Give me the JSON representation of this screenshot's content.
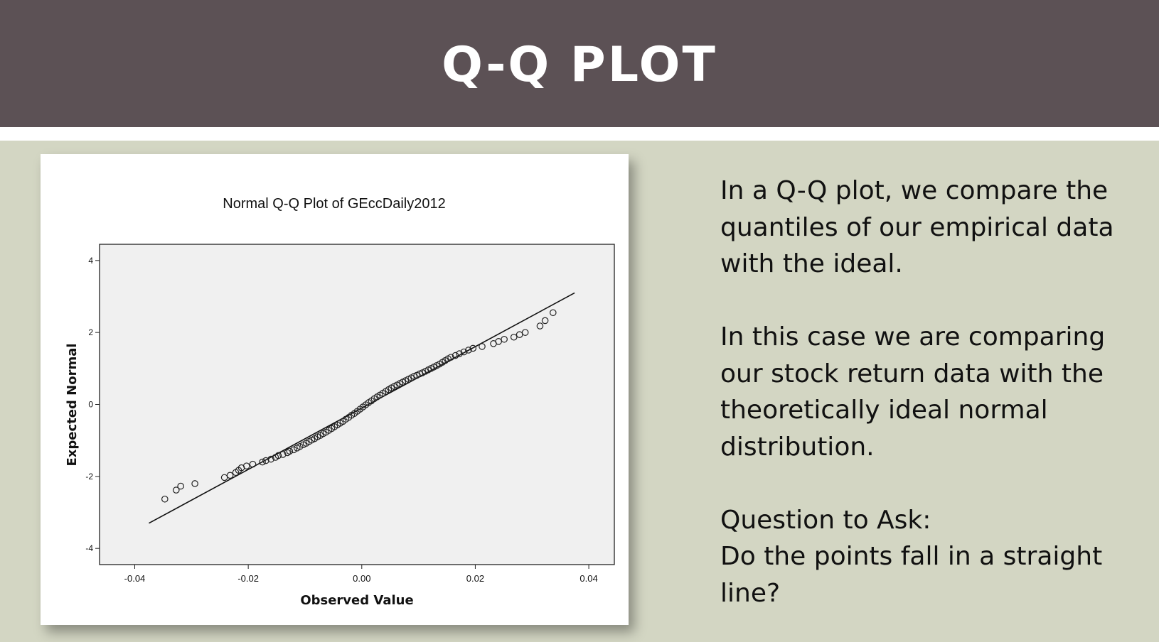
{
  "slide": {
    "title": "Q-Q PLOT",
    "paragraphs": [
      [
        "In a Q-Q plot, we compare the",
        "quantiles of our empirical data",
        "with the ideal."
      ],
      [
        "In this case we are comparing",
        "our stock return data with the",
        "theoretically ideal normal",
        "distribution."
      ],
      [
        "Question to Ask:",
        "Do the points fall in a straight",
        "line?"
      ]
    ]
  },
  "colors": {
    "header_bg": "#5c5155",
    "slide_bg": "#d3d6c3",
    "plot_bg": "#f0f0f0",
    "marker": "#222222"
  },
  "chart_data": {
    "type": "scatter",
    "title": "Normal Q-Q Plot of GEccDaily2012",
    "xlabel": "Observed Value",
    "ylabel": "Expected Normal",
    "xlim": [
      -0.0462,
      0.0445
    ],
    "ylim": [
      -4.45,
      4.45
    ],
    "xticks": [
      -0.04,
      -0.02,
      0.0,
      0.02,
      0.04
    ],
    "xtick_labels": [
      "-0.04",
      "-0.02",
      "0.00",
      "0.02",
      "0.04"
    ],
    "yticks": [
      4,
      2,
      0,
      -2,
      -4
    ],
    "ytick_labels": [
      "4",
      "2",
      "0",
      "-2",
      "-4"
    ],
    "grid": false,
    "marker": "open-circle",
    "reference_line": {
      "x": [
        -0.0375,
        0.0375
      ],
      "y": [
        -3.3,
        3.1
      ]
    },
    "points": [
      [
        -0.0347,
        -2.63
      ],
      [
        -0.0327,
        -2.38
      ],
      [
        -0.0319,
        -2.27
      ],
      [
        -0.0294,
        -2.2
      ],
      [
        -0.0242,
        -2.03
      ],
      [
        -0.0232,
        -1.97
      ],
      [
        -0.0222,
        -1.89
      ],
      [
        -0.0217,
        -1.83
      ],
      [
        -0.0212,
        -1.76
      ],
      [
        -0.0203,
        -1.71
      ],
      [
        -0.0192,
        -1.66
      ],
      [
        -0.0175,
        -1.6
      ],
      [
        -0.0169,
        -1.56
      ],
      [
        -0.016,
        -1.52
      ],
      [
        -0.0152,
        -1.47
      ],
      [
        -0.0147,
        -1.42
      ],
      [
        -0.0139,
        -1.39
      ],
      [
        -0.0131,
        -1.34
      ],
      [
        -0.0127,
        -1.3
      ],
      [
        -0.012,
        -1.26
      ],
      [
        -0.0114,
        -1.21
      ],
      [
        -0.0109,
        -1.17
      ],
      [
        -0.0103,
        -1.12
      ],
      [
        -0.0098,
        -1.08
      ],
      [
        -0.0093,
        -1.03
      ],
      [
        -0.0088,
        -0.99
      ],
      [
        -0.0083,
        -0.95
      ],
      [
        -0.0078,
        -0.9
      ],
      [
        -0.0073,
        -0.86
      ],
      [
        -0.0068,
        -0.81
      ],
      [
        -0.0063,
        -0.77
      ],
      [
        -0.0058,
        -0.72
      ],
      [
        -0.0053,
        -0.67
      ],
      [
        -0.0048,
        -0.62
      ],
      [
        -0.0043,
        -0.57
      ],
      [
        -0.0038,
        -0.52
      ],
      [
        -0.0033,
        -0.47
      ],
      [
        -0.0028,
        -0.41
      ],
      [
        -0.0023,
        -0.36
      ],
      [
        -0.0018,
        -0.3
      ],
      [
        -0.0013,
        -0.25
      ],
      [
        -0.0008,
        -0.19
      ],
      [
        -0.0003,
        -0.13
      ],
      [
        0.0002,
        -0.07
      ],
      [
        0.0007,
        -0.01
      ],
      [
        0.0012,
        0.05
      ],
      [
        0.0017,
        0.1
      ],
      [
        0.0022,
        0.16
      ],
      [
        0.0027,
        0.21
      ],
      [
        0.0032,
        0.26
      ],
      [
        0.0037,
        0.31
      ],
      [
        0.0042,
        0.36
      ],
      [
        0.0047,
        0.41
      ],
      [
        0.0052,
        0.46
      ],
      [
        0.0057,
        0.5
      ],
      [
        0.0062,
        0.54
      ],
      [
        0.0067,
        0.58
      ],
      [
        0.0072,
        0.62
      ],
      [
        0.0077,
        0.66
      ],
      [
        0.0082,
        0.7
      ],
      [
        0.0087,
        0.74
      ],
      [
        0.0092,
        0.78
      ],
      [
        0.0097,
        0.81
      ],
      [
        0.0102,
        0.85
      ],
      [
        0.0107,
        0.88
      ],
      [
        0.0112,
        0.92
      ],
      [
        0.0117,
        0.96
      ],
      [
        0.0122,
        1.0
      ],
      [
        0.0127,
        1.04
      ],
      [
        0.0132,
        1.08
      ],
      [
        0.0137,
        1.12
      ],
      [
        0.0142,
        1.17
      ],
      [
        0.0147,
        1.22
      ],
      [
        0.0152,
        1.27
      ],
      [
        0.0157,
        1.31
      ],
      [
        0.0165,
        1.36
      ],
      [
        0.0172,
        1.41
      ],
      [
        0.018,
        1.46
      ],
      [
        0.0188,
        1.51
      ],
      [
        0.0196,
        1.56
      ],
      [
        0.0212,
        1.61
      ],
      [
        0.0232,
        1.69
      ],
      [
        0.0241,
        1.75
      ],
      [
        0.0251,
        1.81
      ],
      [
        0.0268,
        1.87
      ],
      [
        0.0278,
        1.94
      ],
      [
        0.0288,
        2.0
      ],
      [
        0.0314,
        2.18
      ],
      [
        0.0323,
        2.33
      ],
      [
        0.0337,
        2.55
      ]
    ]
  }
}
